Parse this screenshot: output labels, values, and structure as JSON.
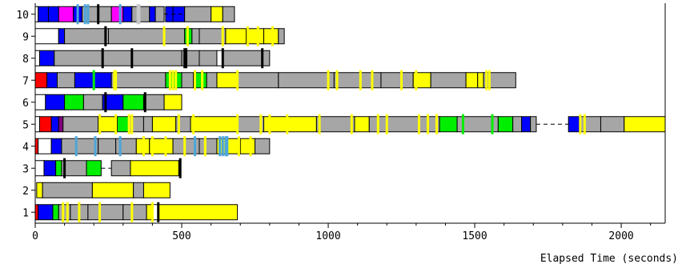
{
  "chart_data": {
    "type": "bar",
    "title": "",
    "xlabel": "Elapsed Time (seconds)",
    "ylabel": "",
    "xlim": [
      0,
      2150
    ],
    "ylim": [
      0.5,
      10.5
    ],
    "xticks": [
      0,
      500,
      1000,
      1500,
      2000
    ],
    "yticks": [
      1,
      2,
      3,
      4,
      5,
      6,
      7,
      8,
      9,
      10
    ],
    "categories": [
      "1",
      "2",
      "3",
      "4",
      "5",
      "6",
      "7",
      "8",
      "9",
      "10"
    ],
    "colors": {
      "gray": "#a6a6a6",
      "yellow": "#ffff00",
      "blue": "#0000ff",
      "green": "#00ee00",
      "red": "#ff0000",
      "white": "#ffffff",
      "magenta": "#ff00ff",
      "purple": "#800080",
      "black": "#000000",
      "lightblue": "#4da6d9",
      "silver": "#c8c8c8"
    },
    "rows": [
      {
        "label": "1",
        "segments": [
          [
            "red",
            0,
            10
          ],
          [
            "blue",
            10,
            60
          ],
          [
            "green",
            60,
            80
          ],
          [
            "gray",
            80,
            120
          ],
          [
            "gray",
            120,
            180
          ],
          [
            "gray",
            180,
            220
          ],
          [
            "gray",
            220,
            300
          ],
          [
            "gray",
            300,
            330
          ],
          [
            "gray",
            330,
            380
          ],
          [
            "yellow",
            380,
            400
          ],
          [
            "white",
            400,
            420
          ],
          [
            "yellow",
            420,
            690
          ]
        ],
        "marks": [
          [
            "yellow",
            95
          ],
          [
            "yellow",
            110
          ],
          [
            "yellow",
            220
          ],
          [
            "yellow",
            330
          ],
          [
            "yellow",
            400
          ],
          [
            "black",
            420
          ],
          [
            "yellow",
            150
          ]
        ],
        "dashes": []
      },
      {
        "label": "2",
        "segments": [
          [
            "yellow",
            5,
            25
          ],
          [
            "gray",
            25,
            195
          ],
          [
            "yellow",
            195,
            335
          ],
          [
            "gray",
            335,
            370
          ],
          [
            "yellow",
            370,
            460
          ]
        ],
        "marks": [],
        "dashes": []
      },
      {
        "label": "3",
        "segments": [
          [
            "white",
            0,
            30
          ],
          [
            "blue",
            30,
            70
          ],
          [
            "green",
            70,
            90
          ],
          [
            "gray",
            90,
            175
          ],
          [
            "green",
            175,
            225
          ],
          [
            "gray",
            260,
            325
          ],
          [
            "yellow",
            325,
            490
          ],
          [
            "black",
            490,
            497
          ]
        ],
        "marks": [
          [
            "black",
            100
          ],
          [
            "black",
            495
          ]
        ],
        "dashes": [
          [
            225,
            260
          ]
        ]
      },
      {
        "label": "4",
        "segments": [
          [
            "red",
            0,
            10
          ],
          [
            "white",
            10,
            55
          ],
          [
            "blue",
            55,
            90
          ],
          [
            "gray",
            90,
            140
          ],
          [
            "gray",
            140,
            215
          ],
          [
            "gray",
            215,
            275
          ],
          [
            "gray",
            275,
            345
          ],
          [
            "yellow",
            345,
            390
          ],
          [
            "yellow",
            390,
            470
          ],
          [
            "gray",
            470,
            560
          ],
          [
            "gray",
            560,
            620
          ],
          [
            "yellow",
            620,
            700
          ],
          [
            "yellow",
            700,
            750
          ],
          [
            "gray",
            750,
            800
          ]
        ],
        "marks": [
          [
            "lightblue",
            140
          ],
          [
            "lightblue",
            205
          ],
          [
            "lightblue",
            290
          ],
          [
            "lightblue",
            545
          ],
          [
            "lightblue",
            630
          ],
          [
            "lightblue",
            640
          ],
          [
            "lightblue",
            650
          ],
          [
            "lightblue",
            655
          ],
          [
            "yellow",
            370
          ],
          [
            "yellow",
            400
          ],
          [
            "yellow",
            445
          ],
          [
            "yellow",
            510
          ],
          [
            "yellow",
            580
          ],
          [
            "yellow",
            695
          ],
          [
            "yellow",
            735
          ]
        ],
        "dashes": []
      },
      {
        "label": "5",
        "segments": [
          [
            "white",
            0,
            15
          ],
          [
            "red",
            15,
            55
          ],
          [
            "blue",
            55,
            80
          ],
          [
            "purple",
            80,
            95
          ],
          [
            "gray",
            95,
            215
          ],
          [
            "yellow",
            215,
            280
          ],
          [
            "green",
            280,
            320
          ],
          [
            "gray",
            320,
            370
          ],
          [
            "gray",
            370,
            400
          ],
          [
            "yellow",
            400,
            480
          ],
          [
            "gray",
            480,
            530
          ],
          [
            "yellow",
            530,
            690
          ],
          [
            "gray",
            690,
            780
          ],
          [
            "yellow",
            780,
            960
          ],
          [
            "gray",
            960,
            1090
          ],
          [
            "yellow",
            1090,
            1140
          ],
          [
            "gray",
            1140,
            1380
          ],
          [
            "green",
            1380,
            1440
          ],
          [
            "gray",
            1440,
            1580
          ],
          [
            "green",
            1580,
            1630
          ],
          [
            "gray",
            1630,
            1660
          ],
          [
            "blue",
            1660,
            1690
          ],
          [
            "gray",
            1690,
            1710
          ],
          [
            "blue",
            1820,
            1860
          ],
          [
            "gray",
            1860,
            1930
          ],
          [
            "gray",
            1930,
            2010
          ],
          [
            "yellow",
            2010,
            2150
          ]
        ],
        "marks": [
          [
            "yellow",
            220
          ],
          [
            "yellow",
            275
          ],
          [
            "yellow",
            320
          ],
          [
            "yellow",
            330
          ],
          [
            "yellow",
            490
          ],
          [
            "yellow",
            540
          ],
          [
            "yellow",
            690
          ],
          [
            "yellow",
            770
          ],
          [
            "yellow",
            800
          ],
          [
            "yellow",
            860
          ],
          [
            "yellow",
            970
          ],
          [
            "yellow",
            1080
          ],
          [
            "yellow",
            1170
          ],
          [
            "yellow",
            1200
          ],
          [
            "yellow",
            1310
          ],
          [
            "yellow",
            1340
          ],
          [
            "yellow",
            1370
          ],
          [
            "green",
            1460
          ],
          [
            "green",
            1560
          ],
          [
            "yellow",
            1860
          ],
          [
            "yellow",
            1875
          ]
        ],
        "dashes": [
          [
            1710,
            1820
          ]
        ]
      },
      {
        "label": "6",
        "segments": [
          [
            "white",
            0,
            35
          ],
          [
            "blue",
            35,
            100
          ],
          [
            "green",
            100,
            165
          ],
          [
            "gray",
            165,
            230
          ],
          [
            "blue",
            230,
            300
          ],
          [
            "green",
            300,
            370
          ],
          [
            "gray",
            370,
            440
          ],
          [
            "yellow",
            440,
            500
          ]
        ],
        "marks": [
          [
            "black",
            375
          ],
          [
            "black",
            240
          ]
        ],
        "dashes": []
      },
      {
        "label": "7",
        "segments": [
          [
            "red",
            0,
            40
          ],
          [
            "blue",
            40,
            75
          ],
          [
            "gray",
            75,
            135
          ],
          [
            "blue",
            135,
            200
          ],
          [
            "blue",
            200,
            260
          ],
          [
            "gray",
            260,
            445
          ],
          [
            "green",
            445,
            500
          ],
          [
            "gray",
            500,
            540
          ],
          [
            "green",
            540,
            585
          ],
          [
            "gray",
            585,
            620
          ],
          [
            "yellow",
            620,
            690
          ],
          [
            "gray",
            690,
            830
          ],
          [
            "gray",
            830,
            1020
          ],
          [
            "gray",
            1020,
            1180
          ],
          [
            "gray",
            1180,
            1290
          ],
          [
            "yellow",
            1290,
            1350
          ],
          [
            "gray",
            1350,
            1470
          ],
          [
            "yellow",
            1470,
            1510
          ],
          [
            "yellow",
            1510,
            1530
          ],
          [
            "gray",
            1530,
            1640
          ]
        ],
        "marks": [
          [
            "green",
            200
          ],
          [
            "yellow",
            270
          ],
          [
            "yellow",
            275
          ],
          [
            "yellow",
            460
          ],
          [
            "yellow",
            470
          ],
          [
            "yellow",
            480
          ],
          [
            "yellow",
            545
          ],
          [
            "yellow",
            570
          ],
          [
            "yellow",
            690
          ],
          [
            "yellow",
            1000
          ],
          [
            "yellow",
            1030
          ],
          [
            "yellow",
            1110
          ],
          [
            "yellow",
            1150
          ],
          [
            "yellow",
            1250
          ],
          [
            "yellow",
            1300
          ],
          [
            "yellow",
            1540
          ],
          [
            "yellow",
            1550
          ]
        ],
        "dashes": []
      },
      {
        "label": "8",
        "segments": [
          [
            "white",
            0,
            15
          ],
          [
            "blue",
            15,
            65
          ],
          [
            "gray",
            65,
            230
          ],
          [
            "gray",
            230,
            330
          ],
          [
            "gray",
            330,
            500
          ],
          [
            "gray",
            500,
            560
          ],
          [
            "gray",
            560,
            620
          ],
          [
            "white",
            620,
            640
          ],
          [
            "gray",
            640,
            800
          ]
        ],
        "marks": [
          [
            "black",
            230
          ],
          [
            "black",
            330
          ],
          [
            "black",
            510
          ],
          [
            "black",
            515
          ],
          [
            "black",
            640
          ],
          [
            "black",
            775
          ]
        ],
        "dashes": []
      },
      {
        "label": "9",
        "segments": [
          [
            "white",
            0,
            80
          ],
          [
            "blue",
            80,
            100
          ],
          [
            "gray",
            100,
            250
          ],
          [
            "gray",
            250,
            510
          ],
          [
            "green",
            510,
            535
          ],
          [
            "gray",
            535,
            560
          ],
          [
            "gray",
            560,
            650
          ],
          [
            "yellow",
            650,
            720
          ],
          [
            "yellow",
            720,
            780
          ],
          [
            "yellow",
            780,
            830
          ],
          [
            "gray",
            830,
            850
          ]
        ],
        "marks": [
          [
            "black",
            240
          ],
          [
            "yellow",
            440
          ],
          [
            "yellow",
            520
          ],
          [
            "yellow",
            640
          ],
          [
            "yellow",
            725
          ],
          [
            "yellow",
            760
          ],
          [
            "yellow",
            810
          ]
        ],
        "dashes": []
      },
      {
        "label": "10",
        "segments": [
          [
            "white",
            0,
            10
          ],
          [
            "blue",
            10,
            45
          ],
          [
            "blue",
            45,
            80
          ],
          [
            "magenta",
            80,
            130
          ],
          [
            "blue",
            130,
            160
          ],
          [
            "gray",
            160,
            215
          ],
          [
            "gray",
            215,
            260
          ],
          [
            "magenta",
            260,
            300
          ],
          [
            "blue",
            300,
            330
          ],
          [
            "gray",
            330,
            390
          ],
          [
            "blue",
            390,
            410
          ],
          [
            "gray",
            410,
            440
          ],
          [
            "blue",
            445,
            470
          ],
          [
            "blue",
            470,
            510
          ],
          [
            "gray",
            510,
            600
          ],
          [
            "yellow",
            600,
            640
          ],
          [
            "gray",
            640,
            680
          ]
        ],
        "marks": [
          [
            "lightblue",
            145
          ],
          [
            "lightblue",
            170
          ],
          [
            "lightblue",
            180
          ],
          [
            "lightblue",
            290
          ],
          [
            "silver",
            350
          ],
          [
            "silver",
            355
          ],
          [
            "black",
            215
          ]
        ],
        "dashes": [
          [
            440,
            510
          ]
        ]
      }
    ]
  }
}
